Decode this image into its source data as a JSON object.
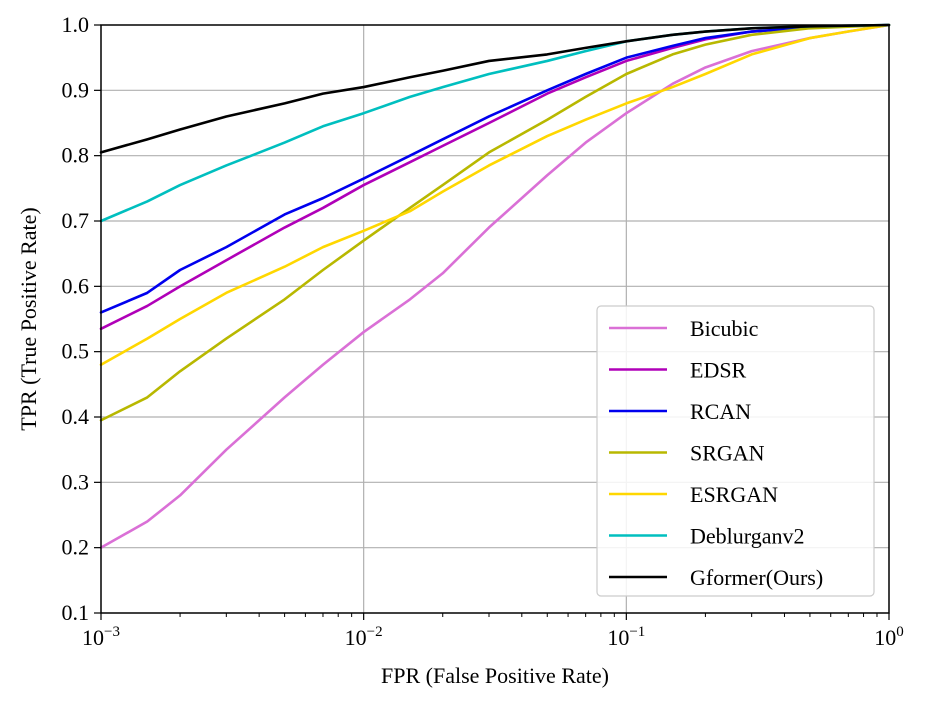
{
  "chart_data": {
    "type": "line",
    "title": "",
    "xlabel": "FPR (False Positive Rate)",
    "ylabel": "TPR (True Positive Rate)",
    "xscale": "log",
    "xlim": [
      0.001,
      1
    ],
    "ylim": [
      0.1,
      1.0
    ],
    "grid": true,
    "legend_position": "lower-right",
    "x_ticks": [
      {
        "value": 0.001,
        "base": "10",
        "exp": "−3"
      },
      {
        "value": 0.01,
        "base": "10",
        "exp": "−2"
      },
      {
        "value": 0.1,
        "base": "10",
        "exp": "−1"
      },
      {
        "value": 1,
        "base": "10",
        "exp": "0"
      }
    ],
    "y_ticks": [
      {
        "value": 0.1,
        "label": "0.1"
      },
      {
        "value": 0.2,
        "label": "0.2"
      },
      {
        "value": 0.3,
        "label": "0.3"
      },
      {
        "value": 0.4,
        "label": "0.4"
      },
      {
        "value": 0.5,
        "label": "0.5"
      },
      {
        "value": 0.6,
        "label": "0.6"
      },
      {
        "value": 0.7,
        "label": "0.7"
      },
      {
        "value": 0.8,
        "label": "0.8"
      },
      {
        "value": 0.9,
        "label": "0.9"
      },
      {
        "value": 1.0,
        "label": "1.0"
      }
    ],
    "series": [
      {
        "name": "Bicubic",
        "color": "#da70d6",
        "points": [
          [
            0.001,
            0.2
          ],
          [
            0.0015,
            0.24
          ],
          [
            0.002,
            0.28
          ],
          [
            0.003,
            0.35
          ],
          [
            0.005,
            0.43
          ],
          [
            0.007,
            0.48
          ],
          [
            0.01,
            0.53
          ],
          [
            0.015,
            0.58
          ],
          [
            0.02,
            0.62
          ],
          [
            0.03,
            0.69
          ],
          [
            0.05,
            0.77
          ],
          [
            0.07,
            0.82
          ],
          [
            0.1,
            0.865
          ],
          [
            0.15,
            0.91
          ],
          [
            0.2,
            0.935
          ],
          [
            0.3,
            0.96
          ],
          [
            0.5,
            0.98
          ],
          [
            0.7,
            0.99
          ],
          [
            1.0,
            1.0
          ]
        ]
      },
      {
        "name": "EDSR",
        "color": "#b000b8",
        "points": [
          [
            0.001,
            0.535
          ],
          [
            0.0015,
            0.57
          ],
          [
            0.002,
            0.6
          ],
          [
            0.003,
            0.64
          ],
          [
            0.005,
            0.69
          ],
          [
            0.007,
            0.72
          ],
          [
            0.01,
            0.755
          ],
          [
            0.015,
            0.79
          ],
          [
            0.02,
            0.815
          ],
          [
            0.03,
            0.85
          ],
          [
            0.05,
            0.895
          ],
          [
            0.07,
            0.92
          ],
          [
            0.1,
            0.945
          ],
          [
            0.15,
            0.965
          ],
          [
            0.2,
            0.978
          ],
          [
            0.3,
            0.99
          ],
          [
            0.5,
            0.996
          ],
          [
            1.0,
            1.0
          ]
        ]
      },
      {
        "name": "RCAN",
        "color": "#0000ee",
        "points": [
          [
            0.001,
            0.56
          ],
          [
            0.0015,
            0.59
          ],
          [
            0.002,
            0.625
          ],
          [
            0.003,
            0.66
          ],
          [
            0.005,
            0.71
          ],
          [
            0.007,
            0.735
          ],
          [
            0.01,
            0.765
          ],
          [
            0.015,
            0.8
          ],
          [
            0.02,
            0.825
          ],
          [
            0.03,
            0.86
          ],
          [
            0.05,
            0.9
          ],
          [
            0.07,
            0.925
          ],
          [
            0.1,
            0.95
          ],
          [
            0.15,
            0.968
          ],
          [
            0.2,
            0.98
          ],
          [
            0.3,
            0.99
          ],
          [
            0.5,
            0.996
          ],
          [
            1.0,
            1.0
          ]
        ]
      },
      {
        "name": "SRGAN",
        "color": "#b8b800",
        "points": [
          [
            0.001,
            0.395
          ],
          [
            0.0015,
            0.43
          ],
          [
            0.002,
            0.47
          ],
          [
            0.003,
            0.52
          ],
          [
            0.005,
            0.58
          ],
          [
            0.007,
            0.625
          ],
          [
            0.01,
            0.67
          ],
          [
            0.015,
            0.72
          ],
          [
            0.02,
            0.755
          ],
          [
            0.03,
            0.805
          ],
          [
            0.05,
            0.855
          ],
          [
            0.07,
            0.89
          ],
          [
            0.1,
            0.925
          ],
          [
            0.15,
            0.955
          ],
          [
            0.2,
            0.97
          ],
          [
            0.3,
            0.985
          ],
          [
            0.5,
            0.995
          ],
          [
            1.0,
            1.0
          ]
        ]
      },
      {
        "name": "ESRGAN",
        "color": "#ffd700",
        "points": [
          [
            0.001,
            0.48
          ],
          [
            0.0015,
            0.52
          ],
          [
            0.002,
            0.55
          ],
          [
            0.003,
            0.59
          ],
          [
            0.005,
            0.63
          ],
          [
            0.007,
            0.66
          ],
          [
            0.01,
            0.685
          ],
          [
            0.015,
            0.715
          ],
          [
            0.02,
            0.745
          ],
          [
            0.03,
            0.785
          ],
          [
            0.05,
            0.83
          ],
          [
            0.07,
            0.855
          ],
          [
            0.1,
            0.88
          ],
          [
            0.15,
            0.905
          ],
          [
            0.2,
            0.925
          ],
          [
            0.3,
            0.955
          ],
          [
            0.5,
            0.98
          ],
          [
            0.7,
            0.99
          ],
          [
            1.0,
            1.0
          ]
        ]
      },
      {
        "name": "Deblurganv2",
        "color": "#00bfbf",
        "points": [
          [
            0.001,
            0.7
          ],
          [
            0.0015,
            0.73
          ],
          [
            0.002,
            0.755
          ],
          [
            0.003,
            0.785
          ],
          [
            0.005,
            0.82
          ],
          [
            0.007,
            0.845
          ],
          [
            0.01,
            0.865
          ],
          [
            0.015,
            0.89
          ],
          [
            0.02,
            0.905
          ],
          [
            0.03,
            0.925
          ],
          [
            0.05,
            0.945
          ],
          [
            0.07,
            0.96
          ],
          [
            0.1,
            0.975
          ],
          [
            0.15,
            0.985
          ],
          [
            0.2,
            0.99
          ],
          [
            0.3,
            0.995
          ],
          [
            0.5,
            0.998
          ],
          [
            1.0,
            1.0
          ]
        ]
      },
      {
        "name": "Gformer(Ours)",
        "color": "#000000",
        "points": [
          [
            0.001,
            0.805
          ],
          [
            0.0015,
            0.825
          ],
          [
            0.002,
            0.84
          ],
          [
            0.003,
            0.86
          ],
          [
            0.005,
            0.88
          ],
          [
            0.007,
            0.895
          ],
          [
            0.01,
            0.905
          ],
          [
            0.015,
            0.92
          ],
          [
            0.02,
            0.93
          ],
          [
            0.03,
            0.945
          ],
          [
            0.05,
            0.955
          ],
          [
            0.07,
            0.965
          ],
          [
            0.1,
            0.975
          ],
          [
            0.15,
            0.985
          ],
          [
            0.2,
            0.99
          ],
          [
            0.3,
            0.995
          ],
          [
            0.5,
            0.998
          ],
          [
            1.0,
            1.0
          ]
        ]
      }
    ]
  }
}
